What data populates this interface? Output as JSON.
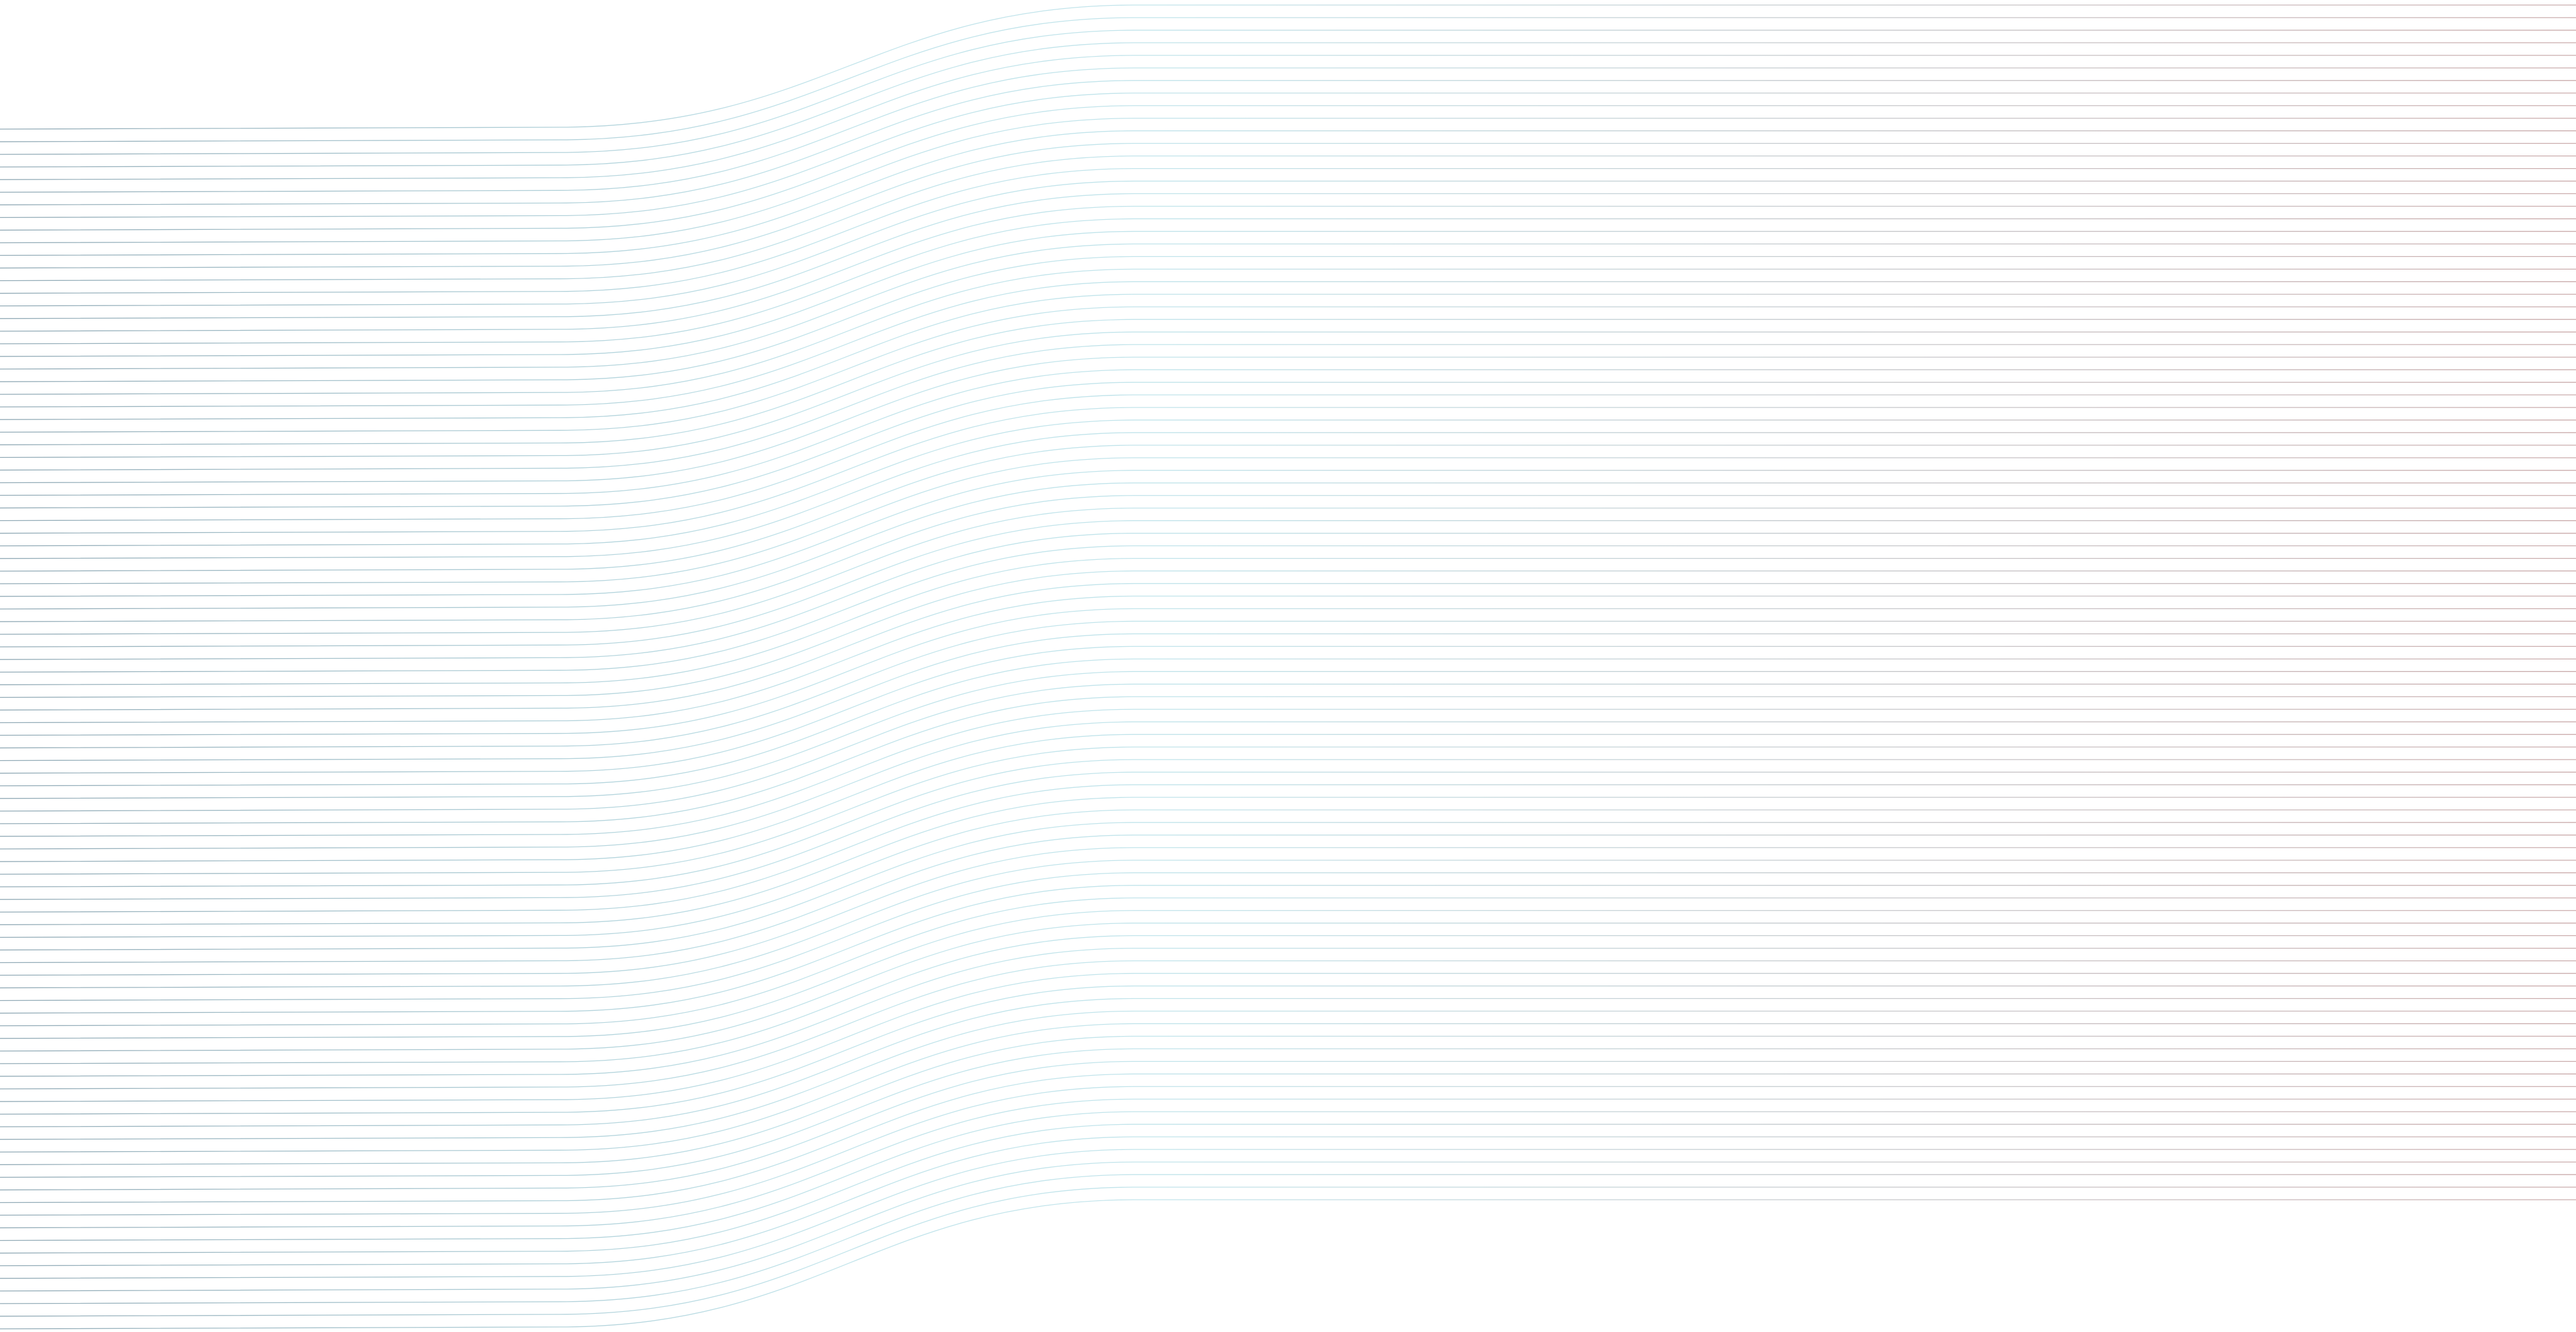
{
  "background": {
    "color": "#ffffff",
    "pattern": "flowing-lines",
    "line_count": 96,
    "line_colors": {
      "left": "#8fa8b4",
      "middle": "#bfe3ea",
      "right": "#c9a9a9"
    }
  }
}
